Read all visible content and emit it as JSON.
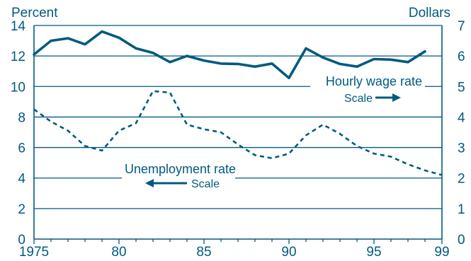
{
  "chart_data": {
    "type": "line",
    "title": "",
    "left_axis_label": "Percent",
    "right_axis_label": "Dollars",
    "xlim": [
      1975,
      1999
    ],
    "x_tick_labels": [
      "1975",
      "80",
      "85",
      "90",
      "95",
      "99"
    ],
    "left_ylim": [
      0,
      14
    ],
    "left_y_tick_labels": [
      "0",
      "2",
      "4",
      "6",
      "8",
      "10",
      "12",
      "14"
    ],
    "right_ylim": [
      0,
      7
    ],
    "right_y_tick_labels": [
      "0",
      "1",
      "2",
      "3",
      "4",
      "5",
      "6",
      "7"
    ],
    "grid": true,
    "colors": {
      "line": "#005a80",
      "text": "#005a80",
      "grid": "#005a80"
    },
    "series": [
      {
        "name": "Hourly wage rate",
        "axis": "right",
        "style": "solid",
        "x": [
          1975,
          1976,
          1977,
          1978,
          1979,
          1980,
          1981,
          1982,
          1983,
          1984,
          1985,
          1986,
          1987,
          1988,
          1989,
          1990,
          1991,
          1992,
          1993,
          1994,
          1995,
          1996,
          1997,
          1998
        ],
        "values": [
          6.05,
          6.5,
          6.58,
          6.38,
          6.8,
          6.6,
          6.25,
          6.1,
          5.8,
          6.0,
          5.85,
          5.75,
          5.74,
          5.65,
          5.75,
          5.28,
          6.25,
          5.95,
          5.74,
          5.65,
          5.9,
          5.88,
          5.8,
          6.15
        ]
      },
      {
        "name": "Unemployment rate",
        "axis": "left",
        "style": "dashed",
        "x": [
          1975,
          1976,
          1977,
          1978,
          1979,
          1980,
          1981,
          1982,
          1983,
          1984,
          1985,
          1986,
          1987,
          1988,
          1989,
          1990,
          1991,
          1992,
          1993,
          1994,
          1995,
          1996,
          1997,
          1998,
          1999
        ],
        "values": [
          8.5,
          7.7,
          7.1,
          6.1,
          5.8,
          7.1,
          7.6,
          9.7,
          9.6,
          7.5,
          7.2,
          7.0,
          6.2,
          5.5,
          5.3,
          5.6,
          6.8,
          7.5,
          6.9,
          6.1,
          5.6,
          5.4,
          4.9,
          4.5,
          4.2
        ]
      }
    ],
    "annotations": {
      "wage_label": "Hourly wage rate",
      "wage_scale": "Scale",
      "unemp_label": "Unemployment rate",
      "unemp_scale": "Scale"
    }
  }
}
